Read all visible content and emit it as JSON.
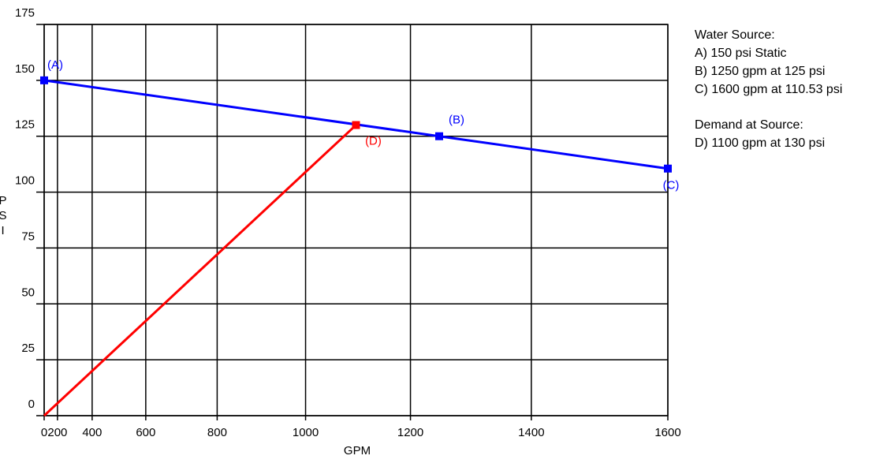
{
  "chart_data": {
    "type": "line",
    "x_label": "GPM",
    "y_label": "PSI",
    "x_scale": "power",
    "x_power": 1.85,
    "xlim": [
      0,
      1600
    ],
    "xticks": [
      0,
      200,
      400,
      600,
      800,
      1000,
      1200,
      1400,
      1600
    ],
    "ylim": [
      0,
      175
    ],
    "yticks": [
      0,
      25,
      50,
      75,
      100,
      125,
      150,
      175
    ],
    "grid": true,
    "series": [
      {
        "color": "#0000ff",
        "x": [
          0,
          1250,
          1600
        ],
        "values": [
          150,
          125,
          110.53
        ],
        "point_labels": [
          "(A)",
          "(B)",
          "(C)"
        ]
      },
      {
        "color": "#ff0000",
        "x": [
          0,
          1100
        ],
        "values": [
          0,
          130
        ],
        "point_labels": [
          null,
          "(D)"
        ]
      }
    ],
    "notes": [
      "Water Source:",
      "A) 150 psi Static",
      "B) 1250 gpm at 125 psi",
      "C) 1600 gpm at 110.53 psi",
      "Demand at Source:",
      "D) 1100 gpm at 130 psi"
    ]
  }
}
